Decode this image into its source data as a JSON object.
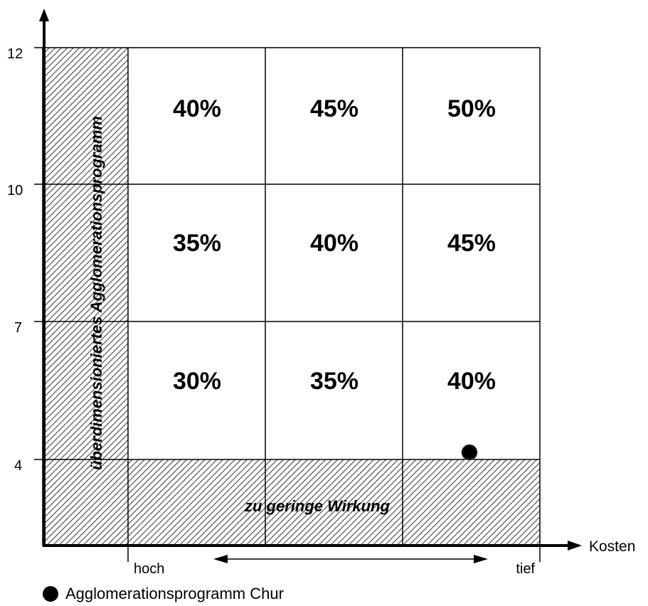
{
  "chart_data": {
    "type": "heatmap",
    "y_ticks": [
      "12",
      "10",
      "7",
      "4"
    ],
    "x_ticks": [
      "hoch",
      "tief"
    ],
    "xlabel": "Kosten",
    "rows": [
      [
        "40%",
        "45%",
        "50%"
      ],
      [
        "35%",
        "40%",
        "45%"
      ],
      [
        "30%",
        "35%",
        "40%"
      ]
    ],
    "zones": {
      "left": "überdimensioniertes Agglomerationsprogramm",
      "bottom": "zu geringe Wirkung"
    },
    "marker": {
      "label": "Agglomerationsprogramm Chur",
      "x_position": "tief",
      "y": 4
    }
  },
  "colors": {
    "grid": "#000000",
    "hatch": "#000000",
    "marker": "#000000",
    "background": "#ffffff"
  }
}
